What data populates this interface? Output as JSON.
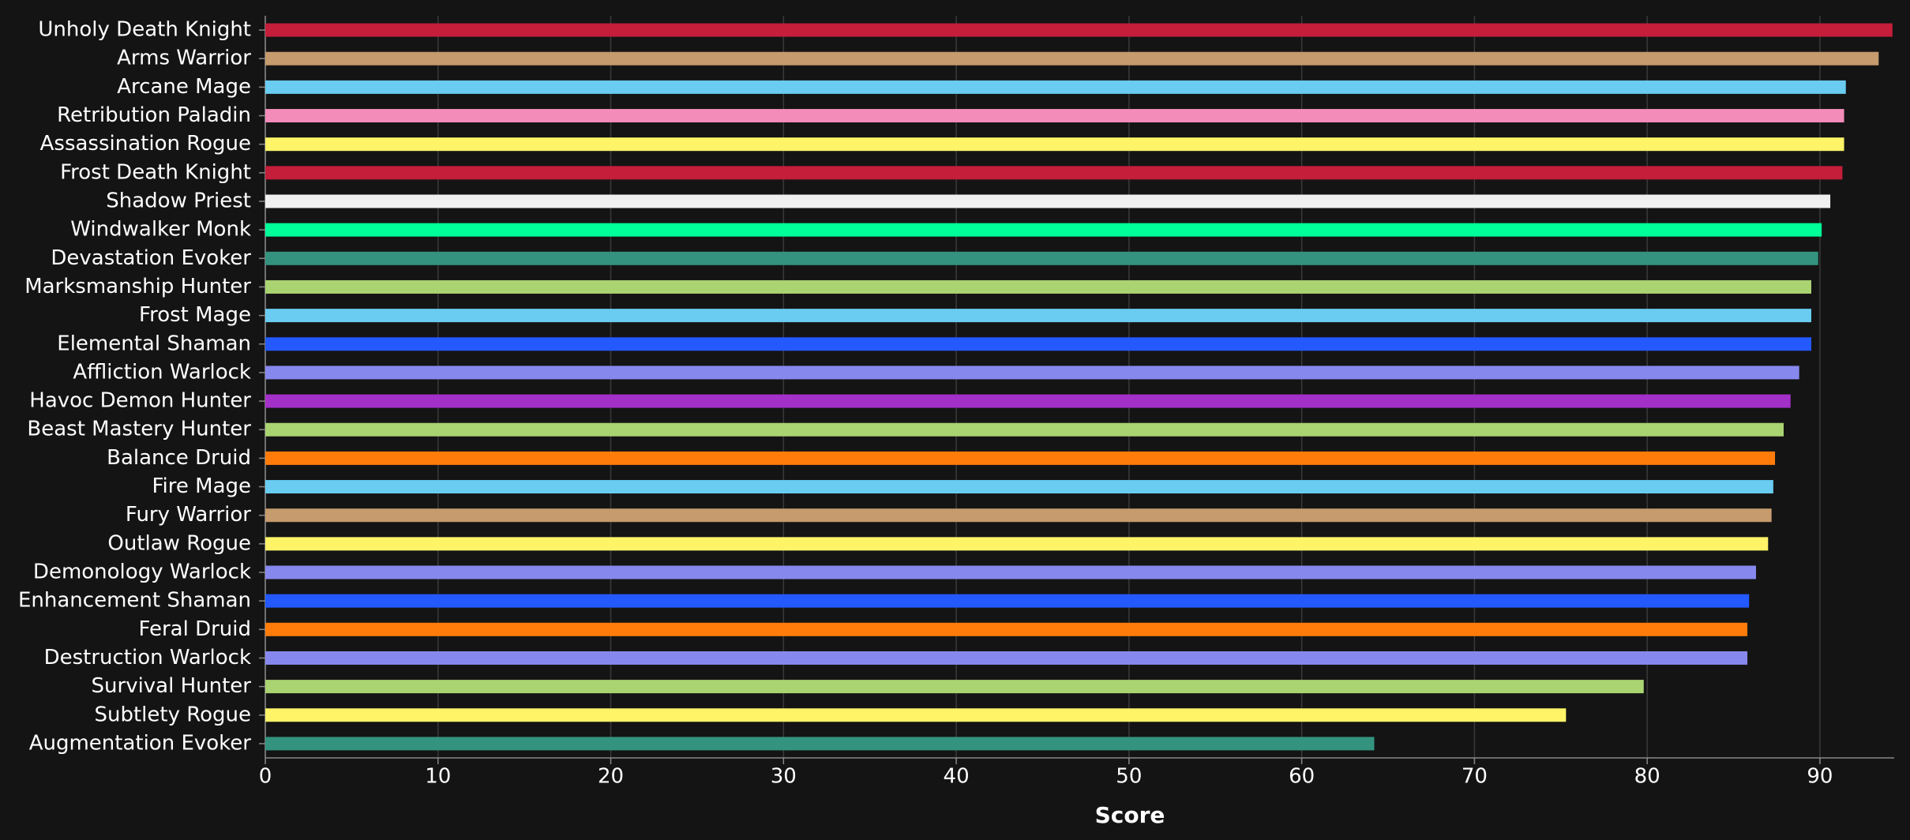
{
  "chart_data": {
    "type": "barh",
    "x_label": "Score",
    "categories": [
      "Unholy Death Knight",
      "Arms Warrior",
      "Arcane Mage",
      "Retribution Paladin",
      "Assassination Rogue",
      "Frost Death Knight",
      "Shadow Priest",
      "Windwalker Monk",
      "Devastation Evoker",
      "Marksmanship Hunter",
      "Frost Mage",
      "Elemental Shaman",
      "Affliction Warlock",
      "Havoc Demon Hunter",
      "Beast Mastery Hunter",
      "Balance Druid",
      "Fire Mage",
      "Fury Warrior",
      "Outlaw Rogue",
      "Demonology Warlock",
      "Enhancement Shaman",
      "Feral Druid",
      "Destruction Warlock",
      "Survival Hunter",
      "Subtlety Rogue",
      "Augmentation Evoker"
    ],
    "values": [
      94.2,
      93.4,
      91.5,
      91.4,
      91.4,
      91.3,
      90.6,
      90.1,
      89.9,
      89.5,
      89.5,
      89.5,
      88.8,
      88.3,
      87.9,
      87.4,
      87.3,
      87.2,
      87.0,
      86.3,
      85.9,
      85.8,
      85.8,
      79.8,
      75.3,
      64.2
    ],
    "colors": [
      "#c41e3a",
      "#c69b6d",
      "#69ccf0",
      "#f48cba",
      "#fff468",
      "#c41e3a",
      "#f0f0f0",
      "#00ff98",
      "#33937f",
      "#aad372",
      "#69ccf0",
      "#2359ff",
      "#8788ee",
      "#a330c9",
      "#aad372",
      "#ff7c0a",
      "#69ccf0",
      "#c69b6d",
      "#fff468",
      "#8788ee",
      "#2359ff",
      "#ff7c0a",
      "#8788ee",
      "#aad372",
      "#fff468",
      "#33937f"
    ],
    "xlim": [
      0,
      94.3
    ],
    "xticks": [
      0,
      10,
      20,
      30,
      40,
      50,
      60,
      70,
      80,
      90
    ],
    "grid": true
  }
}
